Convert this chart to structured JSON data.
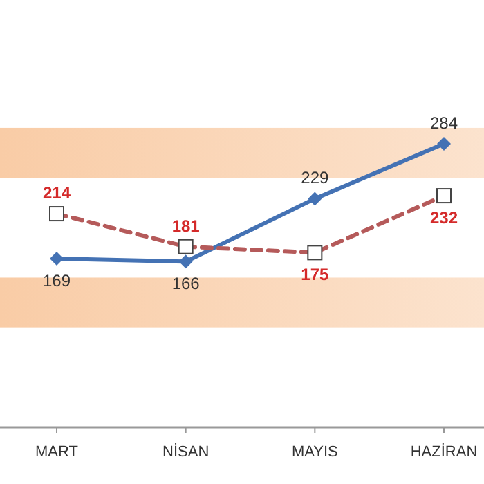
{
  "chart_data": {
    "type": "line",
    "categories": [
      "MART",
      "NİSAN",
      "MAYIS",
      "HAZİRAN"
    ],
    "series": [
      {
        "color": "#4472b4",
        "values": [
          169,
          166,
          229,
          284
        ],
        "marker": "diamond",
        "line_style": "solid"
      },
      {
        "color": "#b55a5a",
        "values": [
          214,
          181,
          175,
          232
        ],
        "marker": "square",
        "line_style": "dashed"
      }
    ],
    "tick_labels": "x",
    "data_labels": true,
    "bands": [
      {
        "axis": "y",
        "from": 100,
        "to": 150,
        "color": "#f9cca6"
      },
      {
        "axis": "y",
        "from": 250,
        "to": 300,
        "color": "#f9cca6"
      }
    ]
  }
}
